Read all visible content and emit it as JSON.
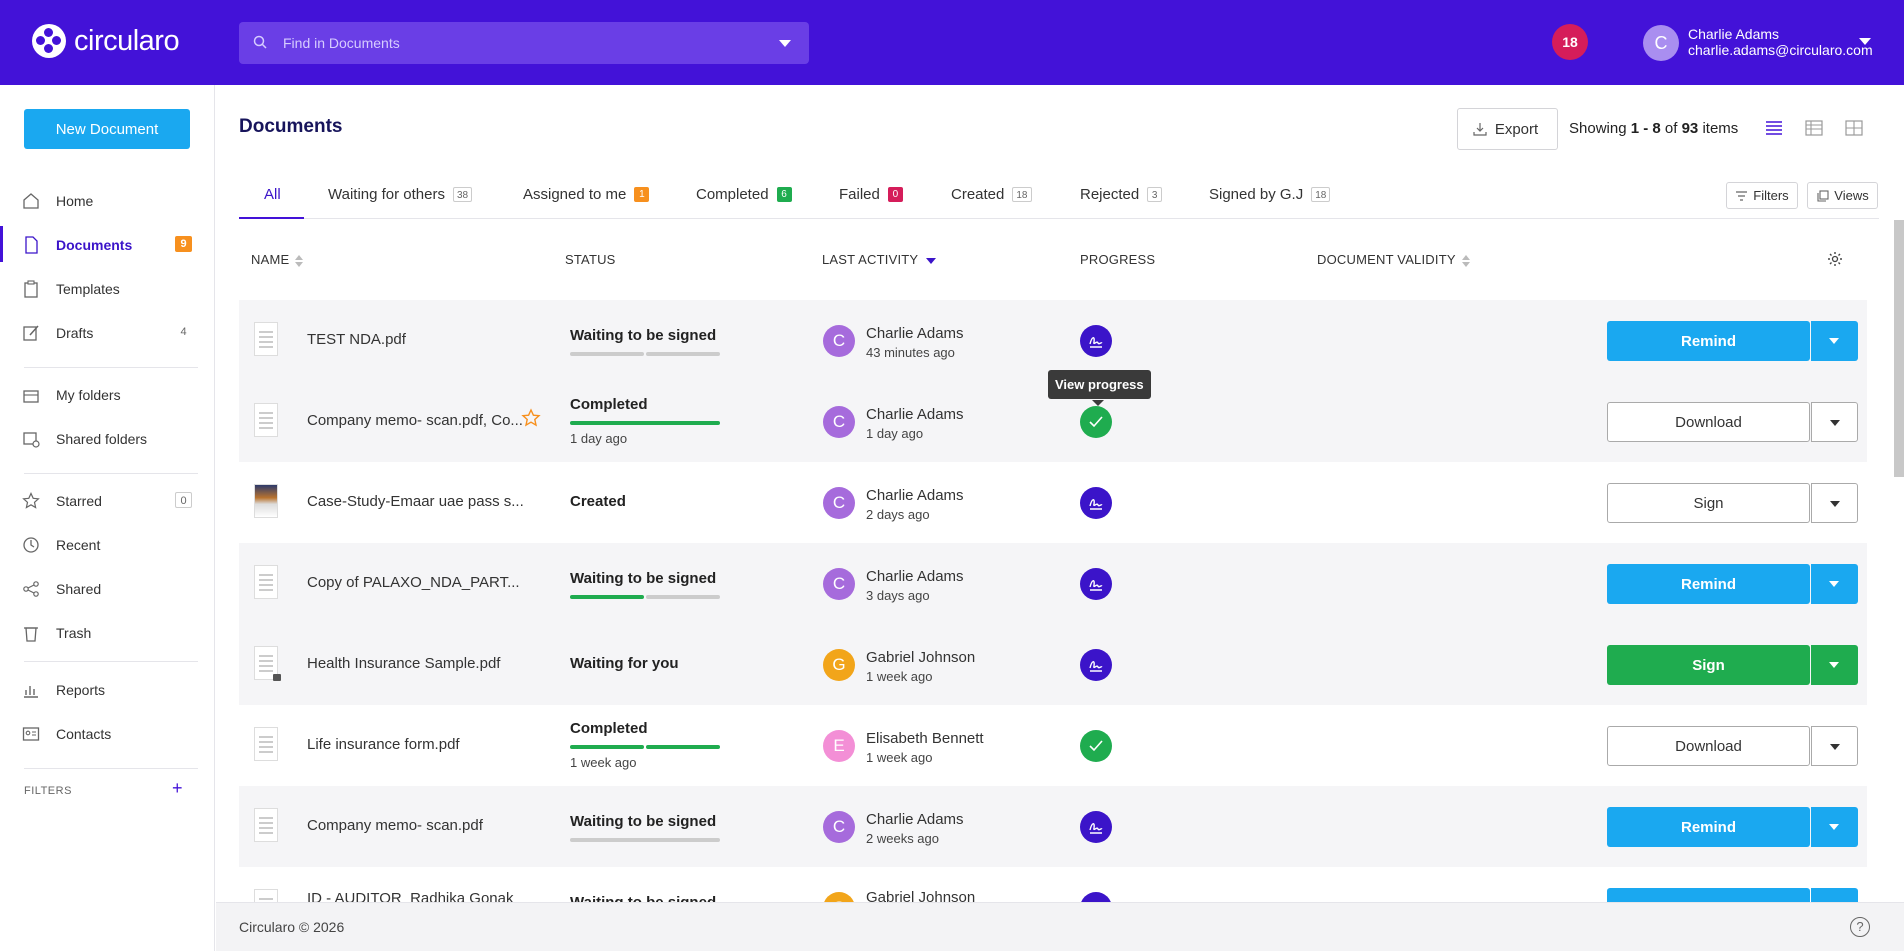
{
  "app": {
    "name": "circularo",
    "brand_color": "#4312d8"
  },
  "search": {
    "placeholder": "Find in Documents"
  },
  "header": {
    "notifications": "18",
    "user_initial": "C",
    "user_name": "Charlie Adams",
    "user_email": "charlie.adams@circularo.com"
  },
  "sidebar": {
    "new_document": "New Document",
    "items": [
      {
        "label": "Home",
        "icon": "home-icon"
      },
      {
        "label": "Documents",
        "icon": "document-icon",
        "count": "9"
      },
      {
        "label": "Templates",
        "icon": "clipboard-icon"
      },
      {
        "label": "Drafts",
        "icon": "pencil-icon",
        "count": "4"
      },
      {
        "label": "My folders",
        "icon": "folder-icon"
      },
      {
        "label": "Shared folders",
        "icon": "shared-folder-icon"
      },
      {
        "label": "Starred",
        "icon": "star-icon",
        "count": "0"
      },
      {
        "label": "Recent",
        "icon": "clock-icon"
      },
      {
        "label": "Shared",
        "icon": "share-icon"
      },
      {
        "label": "Trash",
        "icon": "trash-icon"
      },
      {
        "label": "Reports",
        "icon": "bar-chart-icon"
      },
      {
        "label": "Contacts",
        "icon": "contact-card-icon"
      }
    ],
    "filters_label": "FILTERS",
    "filters_add": "+"
  },
  "main": {
    "title": "Documents",
    "export": "Export",
    "showing_prefix": "Showing ",
    "showing_range": "1 - 8",
    "showing_of": " of ",
    "showing_total": "93",
    "showing_suffix": " items",
    "filters_btn": "Filters",
    "views_btn": "Views",
    "tabs": [
      {
        "label": "All"
      },
      {
        "label": "Waiting for others",
        "count": "38"
      },
      {
        "label": "Assigned to me",
        "count": "1"
      },
      {
        "label": "Completed",
        "count": "6"
      },
      {
        "label": "Failed",
        "count": "0"
      },
      {
        "label": "Created",
        "count": "18"
      },
      {
        "label": "Rejected",
        "count": "3"
      },
      {
        "label": "Signed by G.J",
        "count": "18"
      }
    ],
    "columns": {
      "name": "NAME",
      "status": "STATUS",
      "last_activity": "LAST ACTIVITY",
      "progress": "PROGRESS",
      "validity": "DOCUMENT VALIDITY"
    },
    "tooltip": "View progress",
    "rows": [
      {
        "name": "TEST NDA.pdf",
        "status": "Waiting to be signed",
        "status_time": "",
        "user": "Charlie Adams",
        "initial": "C",
        "avatar_color": "#a66bdc",
        "time": "43 minutes ago",
        "action": "Remind"
      },
      {
        "name": "Company memo- scan.pdf, Co...",
        "status": "Completed",
        "status_time": "1 day ago",
        "user": "Charlie Adams",
        "initial": "C",
        "avatar_color": "#a66bdc",
        "time": "1 day ago",
        "action": "Download"
      },
      {
        "name": "Case-Study-Emaar uae pass s...",
        "status": "Created",
        "status_time": "",
        "user": "Charlie Adams",
        "initial": "C",
        "avatar_color": "#a66bdc",
        "time": "2 days ago",
        "action": "Sign"
      },
      {
        "name": "Copy of PALAXO_NDA_PART...",
        "status": "Waiting to be signed",
        "status_time": "",
        "user": "Charlie Adams",
        "initial": "C",
        "avatar_color": "#a66bdc",
        "time": "3 days ago",
        "action": "Remind"
      },
      {
        "name": "Health Insurance Sample.pdf",
        "status": "Waiting for you",
        "status_time": "",
        "user": "Gabriel Johnson",
        "initial": "G",
        "avatar_color": "#f2a51a",
        "time": "1 week ago",
        "action": "Sign"
      },
      {
        "name": "Life insurance form.pdf",
        "status": "Completed",
        "status_time": "1 week ago",
        "user": "Elisabeth Bennett",
        "initial": "E",
        "avatar_color": "#f38fd6",
        "time": "1 week ago",
        "action": "Download"
      },
      {
        "name": "Company memo- scan.pdf",
        "status": "Waiting to be signed",
        "status_time": "",
        "user": "Charlie Adams",
        "initial": "C",
        "avatar_color": "#a66bdc",
        "time": "2 weeks ago",
        "action": "Remind"
      },
      {
        "name": "ID - AUDITOR_Radhika Gonak",
        "status": "Waiting to be signed",
        "status_time": "",
        "user": "Gabriel Johnson",
        "initial": "G",
        "avatar_color": "#f2a51a",
        "time": "",
        "action": ""
      }
    ]
  },
  "footer": {
    "copyright": "Circularo © 2026",
    "help": "?"
  }
}
